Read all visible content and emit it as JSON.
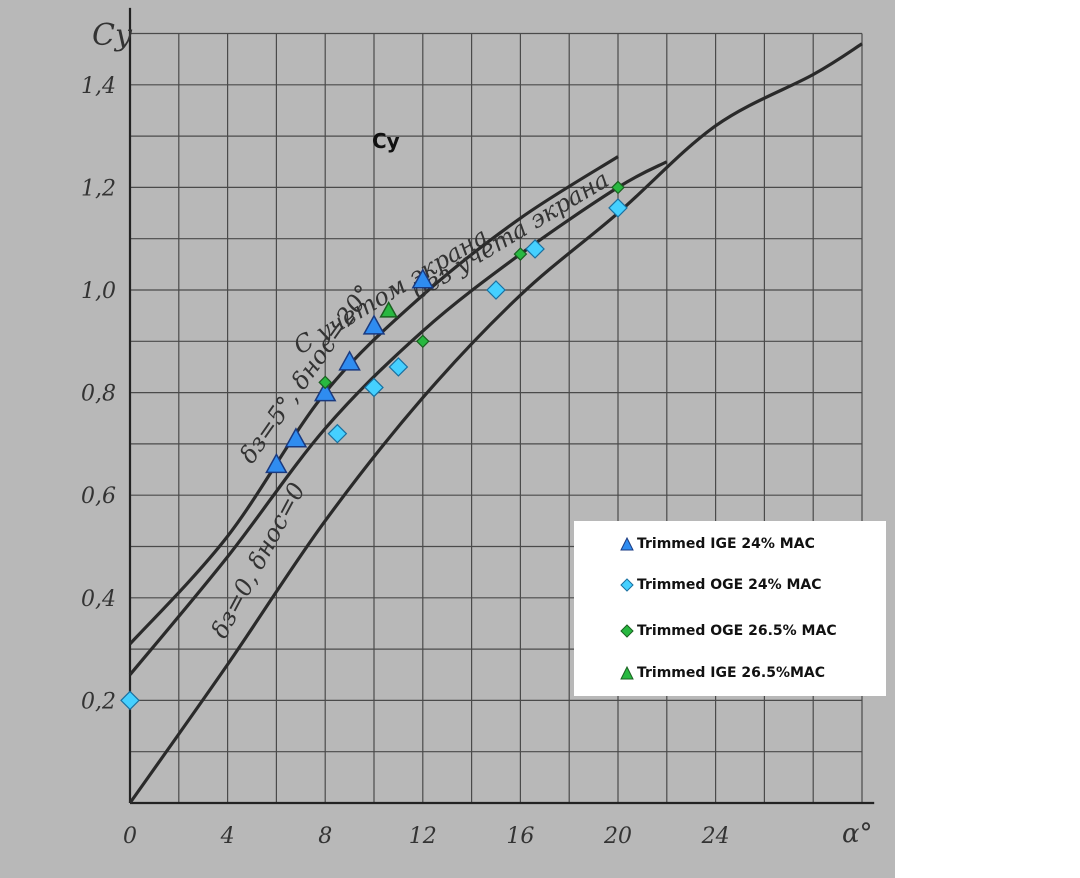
{
  "chart_data": {
    "type": "scatter",
    "title": "Cy",
    "ylabel": "Cy",
    "xlabel": "α°",
    "xlim": [
      0,
      30
    ],
    "ylim": [
      0,
      1.5
    ],
    "x_ticks": [
      "0",
      "4",
      "8",
      "12",
      "16",
      "20",
      "24"
    ],
    "y_ticks": [
      "0,2",
      "0,4",
      "0,6",
      "0,8",
      "1,0",
      "1,2",
      "1,4"
    ],
    "grid": true,
    "legend": "bottom-right",
    "curves": [
      {
        "label": "С учетом экрана",
        "points": [
          [
            0,
            0.31
          ],
          [
            4,
            0.52
          ],
          [
            8,
            0.8
          ],
          [
            12,
            0.99
          ],
          [
            16,
            1.14
          ],
          [
            20,
            1.26
          ]
        ]
      },
      {
        "label": "без учета экрана",
        "points": [
          [
            0,
            0.25
          ],
          [
            4,
            0.48
          ],
          [
            8,
            0.73
          ],
          [
            12,
            0.92
          ],
          [
            16,
            1.07
          ],
          [
            20,
            1.2
          ],
          [
            22,
            1.25
          ]
        ]
      },
      {
        "label": "δз=0, δнос=0",
        "points": [
          [
            0,
            0.0
          ],
          [
            4,
            0.27
          ],
          [
            8,
            0.55
          ],
          [
            12,
            0.79
          ],
          [
            16,
            0.99
          ],
          [
            20,
            1.15
          ],
          [
            24,
            1.32
          ],
          [
            28,
            1.42
          ],
          [
            30,
            1.48
          ]
        ]
      }
    ],
    "curve_annotations": [
      "С учетом экрана",
      "δз=5°, δнос=20°",
      "без учета экрана",
      "δз=0, δнос=0"
    ],
    "series": [
      {
        "name": "Trimmed IGE 24% MAC",
        "marker": "triangle",
        "color": "#2f8cf0",
        "points": [
          [
            6,
            0.66
          ],
          [
            6.8,
            0.71
          ],
          [
            8,
            0.8
          ],
          [
            9,
            0.86
          ],
          [
            10,
            0.93
          ],
          [
            12,
            1.02
          ]
        ]
      },
      {
        "name": "Trimmed OGE 24% MAC",
        "marker": "diamond",
        "color": "#45d0ff",
        "points": [
          [
            0,
            0.2
          ],
          [
            8.5,
            0.72
          ],
          [
            10,
            0.81
          ],
          [
            11,
            0.85
          ],
          [
            15,
            1.0
          ],
          [
            16.6,
            1.08
          ],
          [
            20,
            1.16
          ]
        ]
      },
      {
        "name": "Trimmed OGE 26.5% MAC",
        "marker": "diamond",
        "color": "#28b840",
        "points": [
          [
            8,
            0.82
          ],
          [
            12,
            0.9
          ],
          [
            16,
            1.07
          ],
          [
            20,
            1.2
          ]
        ]
      },
      {
        "name": "Trimmed IGE 26.5%MAC",
        "marker": "triangle",
        "color": "#28b840",
        "points": [
          [
            10.6,
            0.96
          ]
        ]
      }
    ]
  },
  "colors": {
    "paper": "#b8b8b8",
    "ink": "#3a3a3a",
    "grid": "#4a4a4a"
  }
}
